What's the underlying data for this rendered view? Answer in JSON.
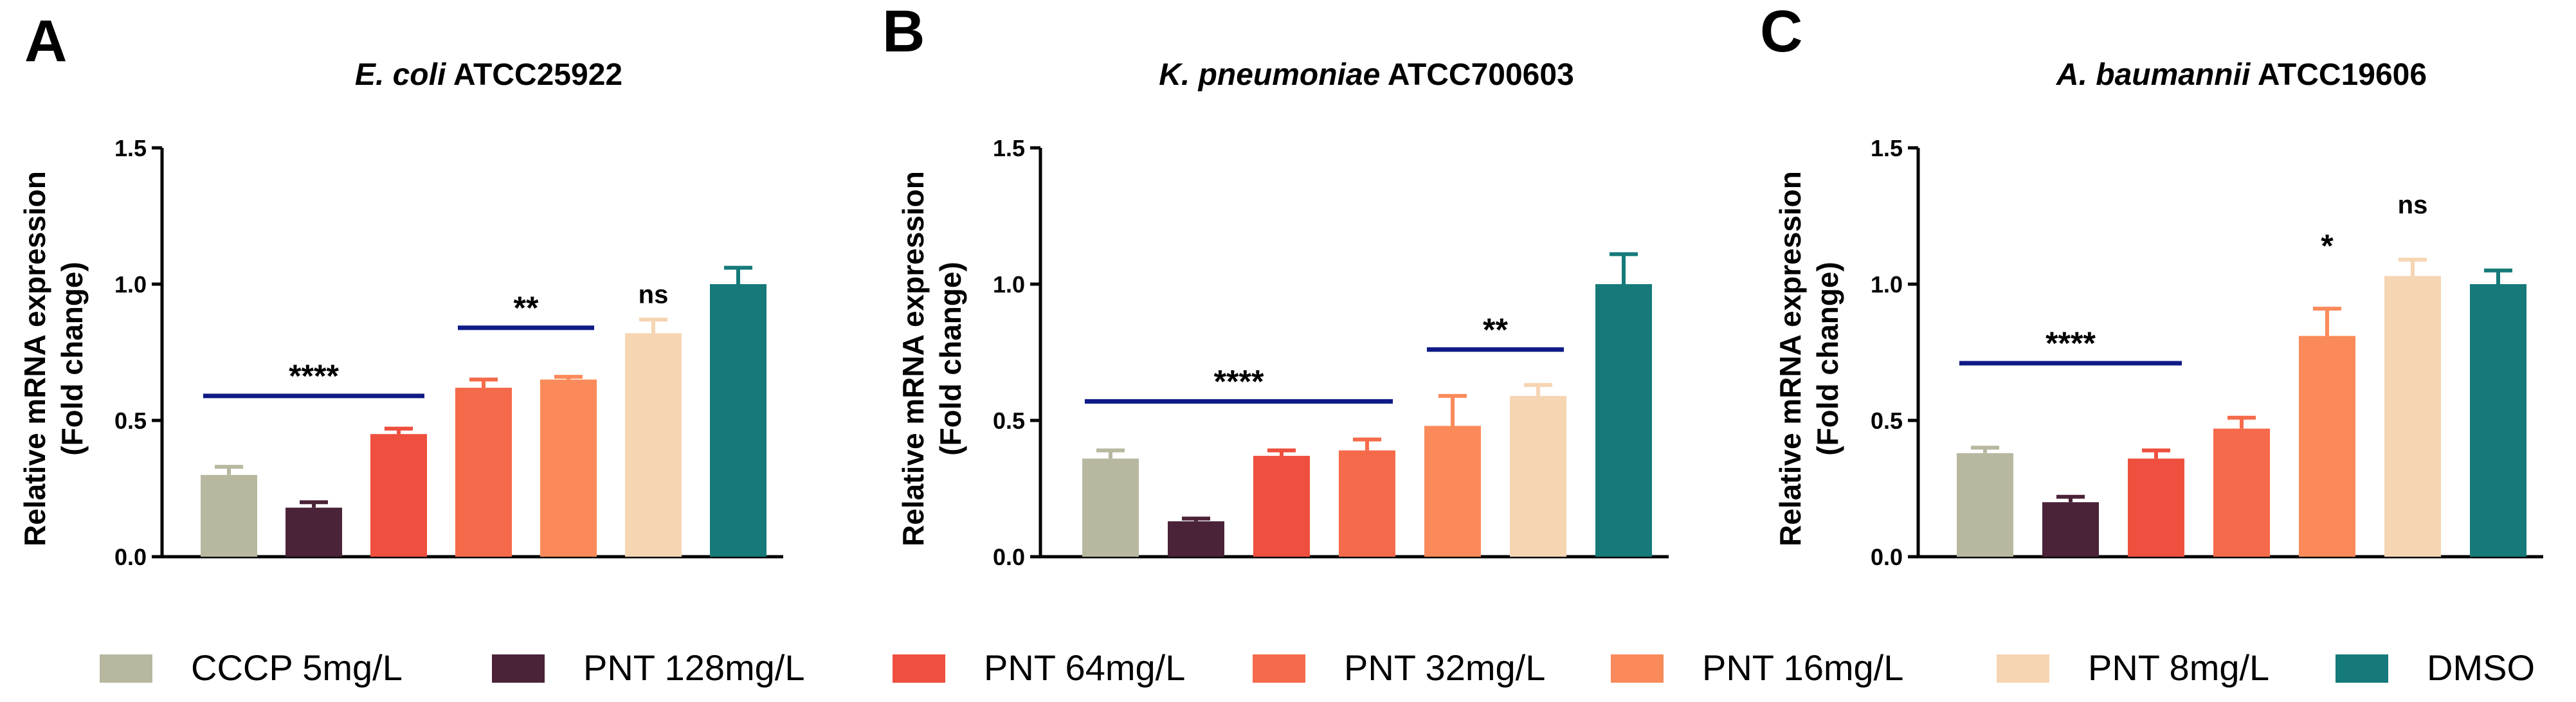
{
  "figure": {
    "panels_letters": [
      "A",
      "B",
      "C"
    ]
  },
  "colors": {
    "CCCP 5mg/L": "#b8b8a0",
    "PNT 128mg/L": "#4a2339",
    "PNT 64mg/L": "#ee4f3e",
    "PNT 32mg/L": "#f56a4a",
    "PNT 16mg/L": "#fb8a5a",
    "PNT 8mg/L": "#f6d5b3",
    "DMSO": "#157a79",
    "sig_line": "#0f1a85"
  },
  "legend": {
    "items": [
      {
        "label": "CCCP 5mg/L",
        "color": "#b8b8a0"
      },
      {
        "label": "PNT 128mg/L",
        "color": "#4a2339"
      },
      {
        "label": "PNT 64mg/L",
        "color": "#ee4f3e"
      },
      {
        "label": "PNT 32mg/L",
        "color": "#f56a4a"
      },
      {
        "label": "PNT 16mg/L",
        "color": "#fb8a5a"
      },
      {
        "label": "PNT 8mg/L",
        "color": "#f6d5b3"
      },
      {
        "label": "DMSO",
        "color": "#157a79"
      }
    ]
  },
  "chart_data": [
    {
      "type": "bar",
      "panel": "A",
      "title_italic": "E. coli",
      "title_rest": " ATCC25922",
      "ylabel_line1": "Relative mRNA expression",
      "ylabel_line2": "(Fold change)",
      "ylim": [
        0,
        1.5
      ],
      "yticks": [
        0.0,
        0.5,
        1.0,
        1.5
      ],
      "ytick_labels": [
        "0.0",
        "0.5",
        "1.0",
        "1.5"
      ],
      "categories": [
        "CCCP 5mg/L",
        "PNT 128mg/L",
        "PNT 64mg/L",
        "PNT 32mg/L",
        "PNT 16mg/L",
        "PNT 8mg/L",
        "DMSO"
      ],
      "values": [
        0.3,
        0.18,
        0.45,
        0.62,
        0.65,
        0.82,
        1.0
      ],
      "errors": [
        0.03,
        0.02,
        0.02,
        0.03,
        0.01,
        0.05,
        0.06
      ],
      "significance": [
        {
          "label": "****",
          "from": 0,
          "to": 2,
          "y": 0.59
        },
        {
          "label": "**",
          "from": 3,
          "to": 4,
          "y": 0.84
        },
        {
          "label": "ns",
          "index": 5,
          "y": 0.93
        }
      ]
    },
    {
      "type": "bar",
      "panel": "B",
      "title_italic": "K. pneumoniae",
      "title_rest": " ATCC700603",
      "ylabel_line1": "Relative mRNA expression",
      "ylabel_line2": "(Fold change)",
      "ylim": [
        0,
        1.5
      ],
      "yticks": [
        0.0,
        0.5,
        1.0,
        1.5
      ],
      "ytick_labels": [
        "0.0",
        "0.5",
        "1.0",
        "1.5"
      ],
      "categories": [
        "CCCP 5mg/L",
        "PNT 128mg/L",
        "PNT 64mg/L",
        "PNT 32mg/L",
        "PNT 16mg/L",
        "PNT 8mg/L",
        "DMSO"
      ],
      "values": [
        0.36,
        0.13,
        0.37,
        0.39,
        0.48,
        0.59,
        1.0
      ],
      "errors": [
        0.03,
        0.01,
        0.02,
        0.04,
        0.11,
        0.04,
        0.11
      ],
      "significance": [
        {
          "label": "****",
          "from": 0,
          "to": 3,
          "y": 0.57
        },
        {
          "label": "**",
          "from": 4,
          "to": 5,
          "y": 0.76
        }
      ]
    },
    {
      "type": "bar",
      "panel": "C",
      "title_italic": "A. baumannii",
      "title_rest": " ATCC19606",
      "ylabel_line1": "Relative mRNA expression",
      "ylabel_line2": "(Fold change)",
      "ylim": [
        0,
        1.5
      ],
      "yticks": [
        0.0,
        0.5,
        1.0,
        1.5
      ],
      "ytick_labels": [
        "0.0",
        "0.5",
        "1.0",
        "1.5"
      ],
      "categories": [
        "CCCP 5mg/L",
        "PNT 128mg/L",
        "PNT 64mg/L",
        "PNT 32mg/L",
        "PNT 16mg/L",
        "PNT 8mg/L",
        "DMSO"
      ],
      "values": [
        0.38,
        0.2,
        0.36,
        0.47,
        0.81,
        1.03,
        1.0
      ],
      "errors": [
        0.02,
        0.02,
        0.03,
        0.04,
        0.1,
        0.06,
        0.05
      ],
      "significance": [
        {
          "label": "****",
          "from": 0,
          "to": 2,
          "y": 0.71
        },
        {
          "label": "*",
          "index": 4,
          "y": 1.1
        },
        {
          "label": "ns",
          "index": 5,
          "y": 1.26
        }
      ]
    }
  ]
}
